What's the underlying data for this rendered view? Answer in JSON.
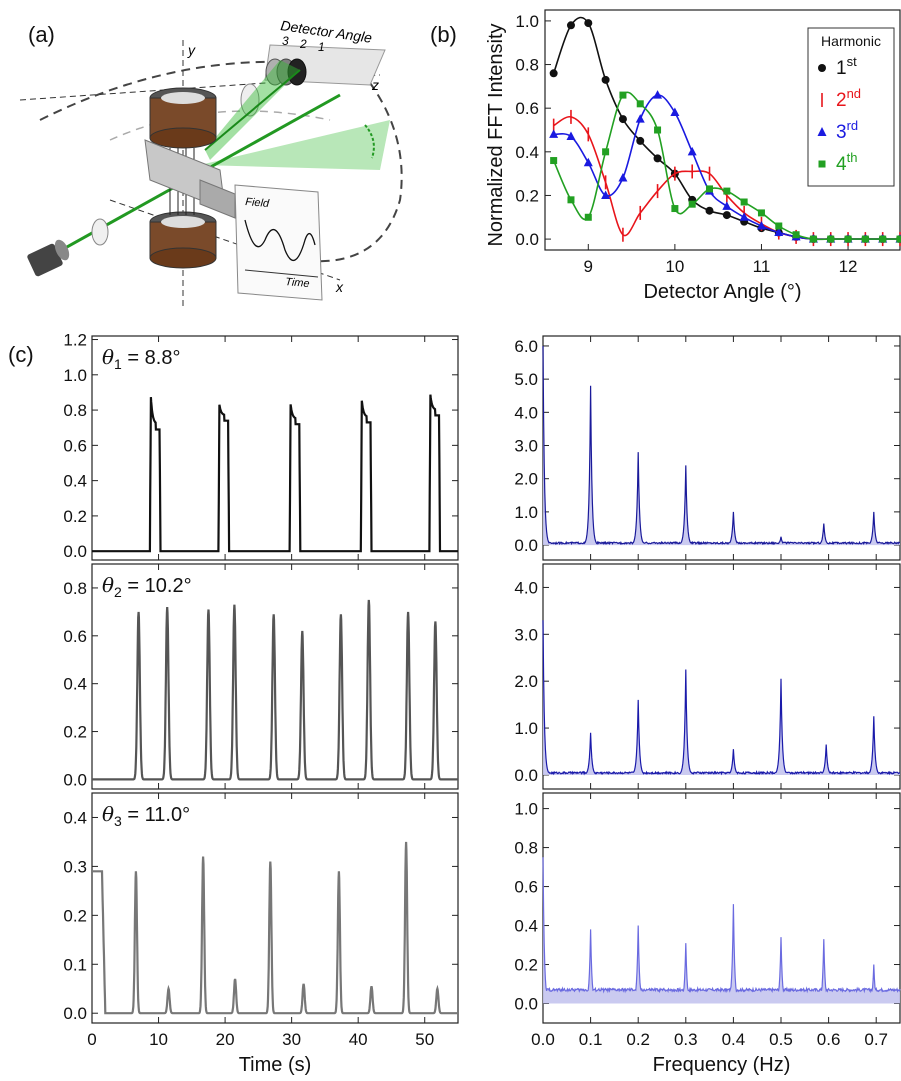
{
  "panel_labels": {
    "a": "(a)",
    "b": "(b)",
    "c": "(c)"
  },
  "diagram": {
    "detector_angle_label": "Detector Angle",
    "detector_marks": [
      "3",
      "2",
      "1"
    ],
    "axis_y": "y",
    "axis_z": "z",
    "axis_x": "x",
    "inset_field": "Field",
    "inset_time": "Time"
  },
  "colors": {
    "black": "#111111",
    "red": "#e8151b",
    "blue": "#1a1ae0",
    "green": "#22a022",
    "fft_fill": "#c8c8f0"
  },
  "chart_data": [
    {
      "type": "line",
      "id": "b",
      "xlabel": "Detector Angle (°)",
      "ylabel": "Normalized FFT Intensity",
      "xlim": [
        8.5,
        12.6
      ],
      "ylim": [
        -0.05,
        1.05
      ],
      "xticks": [
        "9",
        "10",
        "11",
        "12"
      ],
      "yticks": [
        "0.0",
        "0.2",
        "0.4",
        "0.6",
        "0.8",
        "1.0"
      ],
      "legend_title": "Harmonic",
      "legend_position": "top-right",
      "series": [
        {
          "name": "1st",
          "base": "1",
          "sup": "st",
          "color": "#111111",
          "marker": "circle",
          "x": [
            8.6,
            8.8,
            9.0,
            9.2,
            9.4,
            9.6,
            9.8,
            10.0,
            10.2,
            10.4,
            10.6,
            10.8,
            11.0,
            11.2,
            11.4,
            11.6,
            11.8,
            12.0,
            12.2,
            12.4,
            12.6
          ],
          "y": [
            0.76,
            0.98,
            0.99,
            0.73,
            0.55,
            0.45,
            0.37,
            0.3,
            0.18,
            0.13,
            0.11,
            0.08,
            0.05,
            0.03,
            0.01,
            0.0,
            0.0,
            0.0,
            0.0,
            0.0,
            0.0
          ]
        },
        {
          "name": "2nd",
          "base": "2",
          "sup": "nd",
          "color": "#e8151b",
          "marker": "bar",
          "x": [
            8.6,
            8.8,
            9.0,
            9.2,
            9.4,
            9.6,
            9.8,
            10.0,
            10.2,
            10.4,
            10.6,
            10.8,
            11.0,
            11.2,
            11.4,
            11.6,
            11.8,
            12.0,
            12.2,
            12.4,
            12.6
          ],
          "y": [
            0.52,
            0.56,
            0.48,
            0.26,
            0.02,
            0.12,
            0.22,
            0.3,
            0.31,
            0.3,
            0.2,
            0.12,
            0.07,
            0.03,
            0.01,
            0.0,
            0.0,
            0.0,
            0.0,
            0.0,
            0.0
          ]
        },
        {
          "name": "3rd",
          "base": "3",
          "sup": "rd",
          "color": "#1a1ae0",
          "marker": "triangle",
          "x": [
            8.6,
            8.8,
            9.0,
            9.2,
            9.4,
            9.6,
            9.8,
            10.0,
            10.2,
            10.4,
            10.6,
            10.8,
            11.0,
            11.2,
            11.4,
            11.6,
            11.8,
            12.0,
            12.2,
            12.4,
            12.6
          ],
          "y": [
            0.48,
            0.47,
            0.35,
            0.2,
            0.28,
            0.55,
            0.66,
            0.58,
            0.4,
            0.22,
            0.15,
            0.1,
            0.06,
            0.03,
            0.01,
            0.0,
            0.0,
            0.0,
            0.0,
            0.0,
            0.0
          ]
        },
        {
          "name": "4th",
          "base": "4",
          "sup": "th",
          "color": "#22a022",
          "marker": "square",
          "x": [
            8.6,
            8.8,
            9.0,
            9.2,
            9.4,
            9.6,
            9.8,
            10.0,
            10.2,
            10.4,
            10.6,
            10.8,
            11.0,
            11.2,
            11.4,
            11.6,
            11.8,
            12.0,
            12.2,
            12.4,
            12.6
          ],
          "y": [
            0.36,
            0.18,
            0.1,
            0.4,
            0.66,
            0.62,
            0.5,
            0.14,
            0.16,
            0.23,
            0.22,
            0.17,
            0.12,
            0.06,
            0.02,
            0.0,
            0.0,
            0.0,
            0.0,
            0.0,
            0.0
          ]
        }
      ]
    },
    {
      "type": "line",
      "id": "c-time-1",
      "label_theta": "θ",
      "label_sub": "1",
      "label_value": " = 8.8°",
      "xlim": [
        0,
        55
      ],
      "ylim": [
        -0.05,
        1.22
      ],
      "yticks": [
        "0.0",
        "0.2",
        "0.4",
        "0.6",
        "0.8",
        "1.0",
        "1.2"
      ],
      "color": "#111111",
      "baseline": 0.0,
      "pulses": [
        [
          9.5,
          1.0,
          0.72
        ],
        [
          19.8,
          0.88,
          0.77
        ],
        [
          30.5,
          0.9,
          0.75
        ],
        [
          41.2,
          0.93,
          0.76
        ],
        [
          51.5,
          0.96,
          0.8
        ]
      ],
      "pulse_width": 1.6
    },
    {
      "type": "line",
      "id": "c-time-2",
      "label_theta": "θ",
      "label_sub": "2",
      "label_value": " = 10.2°",
      "xlim": [
        0,
        55
      ],
      "ylim": [
        -0.04,
        0.9
      ],
      "yticks": [
        "0.0",
        "0.2",
        "0.4",
        "0.6",
        "0.8"
      ],
      "color": "#555555",
      "baseline": 0.0,
      "peaks": [
        [
          7.0,
          0.7
        ],
        [
          11.3,
          0.72
        ],
        [
          17.5,
          0.71
        ],
        [
          21.4,
          0.73
        ],
        [
          27.3,
          0.69
        ],
        [
          31.6,
          0.62
        ],
        [
          37.4,
          0.69
        ],
        [
          41.6,
          0.75
        ],
        [
          47.5,
          0.7
        ],
        [
          51.6,
          0.66
        ]
      ],
      "peak_width": 0.6
    },
    {
      "type": "line",
      "id": "c-time-3",
      "label_theta": "θ",
      "label_sub": "3",
      "label_value": " = 11.0°",
      "xlim": [
        0,
        55
      ],
      "ylim": [
        -0.02,
        0.45
      ],
      "yticks": [
        "0.0",
        "0.1",
        "0.2",
        "0.3",
        "0.4"
      ],
      "xticks": [
        "0",
        "10",
        "20",
        "30",
        "40",
        "50"
      ],
      "xlabel": "Time (s)",
      "color": "#777777",
      "baseline": 0.0,
      "initial_level": 0.29,
      "peaks": [
        [
          6.6,
          0.29
        ],
        [
          11.5,
          0.05
        ],
        [
          16.7,
          0.32
        ],
        [
          21.5,
          0.07
        ],
        [
          26.8,
          0.31
        ],
        [
          31.8,
          0.06
        ],
        [
          37.1,
          0.29
        ],
        [
          42.0,
          0.055
        ],
        [
          47.2,
          0.35
        ],
        [
          51.9,
          0.05
        ]
      ],
      "peak_width": 0.5
    },
    {
      "type": "area",
      "id": "c-fft-1",
      "xlim": [
        0,
        0.75
      ],
      "ylim": [
        -0.45,
        6.3
      ],
      "yticks": [
        "0.0",
        "1.0",
        "2.0",
        "3.0",
        "4.0",
        "5.0",
        "6.0"
      ],
      "color": "#1a1a9a",
      "noise": 0.05,
      "peaks": [
        [
          0.0,
          6.0
        ],
        [
          0.1,
          4.8
        ],
        [
          0.2,
          2.8
        ],
        [
          0.3,
          2.4
        ],
        [
          0.4,
          1.0
        ],
        [
          0.5,
          0.25
        ],
        [
          0.59,
          0.65
        ],
        [
          0.695,
          1.0
        ]
      ]
    },
    {
      "type": "area",
      "id": "c-fft-2",
      "xlim": [
        0,
        0.75
      ],
      "ylim": [
        -0.3,
        4.5
      ],
      "yticks": [
        "0.0",
        "1.0",
        "2.0",
        "3.0",
        "4.0"
      ],
      "color": "#1a1aaa",
      "noise": 0.04,
      "peaks": [
        [
          0.0,
          3.3
        ],
        [
          0.1,
          0.9
        ],
        [
          0.2,
          1.6
        ],
        [
          0.3,
          2.25
        ],
        [
          0.4,
          0.55
        ],
        [
          0.5,
          2.05
        ],
        [
          0.595,
          0.65
        ],
        [
          0.695,
          1.25
        ]
      ]
    },
    {
      "type": "area",
      "id": "c-fft-3",
      "xlim": [
        0,
        0.75
      ],
      "ylim": [
        -0.1,
        1.08
      ],
      "yticks": [
        "0.0",
        "0.2",
        "0.4",
        "0.6",
        "0.8",
        "1.0"
      ],
      "xticks": [
        "0.0",
        "0.1",
        "0.2",
        "0.3",
        "0.4",
        "0.5",
        "0.6",
        "0.7"
      ],
      "xlabel": "Frequency (Hz)",
      "color": "#6a6ae0",
      "noise": 0.015,
      "floor": 0.07,
      "peaks": [
        [
          0.0,
          0.75
        ],
        [
          0.1,
          0.38
        ],
        [
          0.2,
          0.4
        ],
        [
          0.3,
          0.31
        ],
        [
          0.4,
          0.51
        ],
        [
          0.5,
          0.34
        ],
        [
          0.59,
          0.33
        ],
        [
          0.695,
          0.2
        ]
      ]
    }
  ]
}
